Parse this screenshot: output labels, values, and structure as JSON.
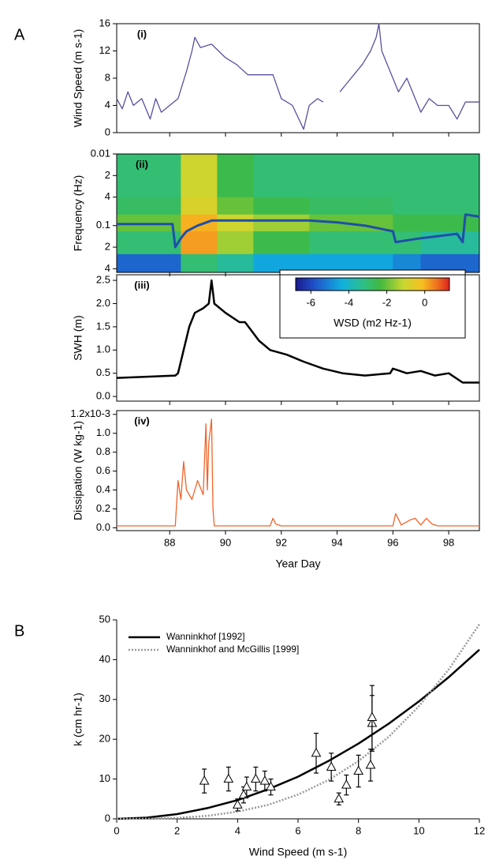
{
  "chart_data": [
    {
      "type": "line",
      "panel": "A",
      "annotation": "(i)",
      "ylabel": "Wind Speed (m s-1)",
      "xlim": [
        86.1,
        99.1
      ],
      "xticks": [
        88,
        90,
        92,
        94,
        96,
        98
      ],
      "ylim": [
        0,
        16
      ],
      "yticks": [
        0,
        4,
        8,
        12,
        16
      ],
      "series": [
        {
          "color": "#5a4fa0",
          "x": [
            86.1,
            86.3,
            86.5,
            86.7,
            87.0,
            87.3,
            87.5,
            87.7,
            88.0,
            88.3,
            88.6,
            88.8,
            88.9,
            89.1,
            89.5,
            90.0,
            90.4,
            90.8,
            91.2,
            91.7,
            92.0,
            92.4,
            92.8,
            93.0,
            93.3,
            93.5,
            93.8,
            94.1,
            94.3,
            94.6,
            94.9,
            95.2,
            95.4,
            95.5,
            95.6,
            95.8,
            96.0,
            96.2,
            96.5,
            96.7,
            97.0,
            97.3,
            97.6,
            98.0,
            98.3,
            98.6,
            99.1
          ],
          "values": [
            5,
            3.5,
            6,
            4,
            5,
            2,
            5,
            3,
            4,
            5,
            9,
            12,
            14,
            12.5,
            13,
            11,
            10,
            8.5,
            8.5,
            8.5,
            5,
            4,
            0.5,
            4,
            5,
            4.5,
            null,
            6,
            7,
            8.5,
            10,
            12,
            14,
            16,
            12,
            10,
            8,
            6,
            8,
            6,
            3,
            5,
            4,
            4,
            2,
            4.5,
            4.5
          ]
        }
      ]
    },
    {
      "type": "heatmap",
      "annotation": "(ii)",
      "ylabel": "Frequency (Hz)",
      "ylog": true,
      "y_inverted": true,
      "xlim": [
        86.1,
        99.1
      ],
      "xticks": [
        88,
        90,
        92,
        94,
        96,
        98
      ],
      "ylim": [
        0.01,
        0.45
      ],
      "yticks": [
        0.01,
        {
          "value": 0.02,
          "label": "2"
        },
        {
          "value": 0.04,
          "label": "4"
        },
        0.1,
        {
          "value": 0.2,
          "label": "2"
        },
        {
          "value": 0.4,
          "label": "4"
        }
      ],
      "x_edges": [
        86.1,
        88.4,
        89.7,
        91,
        93,
        95,
        96,
        97,
        99.1
      ],
      "y_edges": [
        0.01,
        0.02,
        0.04,
        0.07,
        0.12,
        0.25,
        0.45
      ],
      "z": [
        [
          -3,
          -1,
          -2.5,
          -3,
          -3,
          -3,
          -3,
          -3
        ],
        [
          -3,
          -1,
          -2.5,
          -3,
          -3,
          -3,
          -3,
          -3
        ],
        [
          -2.8,
          -0.8,
          -2,
          -2.5,
          -2.8,
          -2.8,
          -3,
          -3
        ],
        [
          -2,
          0,
          -1,
          -1.5,
          -2,
          -2,
          -2.5,
          -2.5
        ],
        [
          -3,
          0.2,
          -1.5,
          -2.5,
          -3,
          -3,
          -3,
          -3.5
        ],
        [
          -5.5,
          -3,
          -3.5,
          -4.5,
          -4.5,
          -4.5,
          -5,
          -5.5
        ]
      ],
      "clim": [
        -6.8,
        1.3
      ],
      "cticks": [
        -6,
        -4,
        -2,
        0
      ],
      "clabel": "WSD (m2 Hz-1)",
      "series": [
        {
          "color": "#1f4fa8",
          "x": [
            86.1,
            88.1,
            88.2,
            88.4,
            88.6,
            89.0,
            89.5,
            91.0,
            93.0,
            94.0,
            95.0,
            96.0,
            96.1,
            97.0,
            98.3,
            98.5,
            98.6,
            99.1
          ],
          "values": [
            0.095,
            0.095,
            0.2,
            0.15,
            0.12,
            0.1,
            0.085,
            0.085,
            0.085,
            0.09,
            0.1,
            0.12,
            0.17,
            0.15,
            0.13,
            0.17,
            0.07,
            0.075
          ]
        }
      ]
    },
    {
      "type": "line",
      "annotation": "(iii)",
      "ylabel": "SWH (m)",
      "xlim": [
        86.1,
        99.1
      ],
      "xticks": [
        88,
        90,
        92,
        94,
        96,
        98
      ],
      "ylim": [
        -0.1,
        2.62
      ],
      "yticks": [
        {
          "value": 0,
          "label": "0.0"
        },
        0.5,
        {
          "value": 1,
          "label": "1.0"
        },
        1.5,
        {
          "value": 2,
          "label": "2.0"
        },
        2.5
      ],
      "series": [
        {
          "color": "#000000",
          "x": [
            86.1,
            87,
            88.2,
            88.3,
            88.5,
            88.7,
            88.9,
            89.2,
            89.4,
            89.5,
            89.6,
            90.0,
            90.5,
            90.7,
            91.2,
            91.6,
            92.2,
            92.8,
            93.5,
            94.2,
            95.0,
            95.9,
            96.0,
            96.5,
            97.0,
            97.5,
            98.0,
            98.5,
            99.1
          ],
          "values": [
            0.4,
            0.42,
            0.45,
            0.5,
            1.0,
            1.5,
            1.8,
            1.9,
            2.0,
            2.5,
            2.0,
            1.8,
            1.6,
            1.6,
            1.2,
            1.0,
            0.9,
            0.75,
            0.6,
            0.5,
            0.45,
            0.5,
            0.6,
            0.5,
            0.55,
            0.45,
            0.5,
            0.3,
            0.3
          ]
        }
      ]
    },
    {
      "type": "line",
      "annotation": "(iv)",
      "ylabel": "Dissipation (W kg-1)",
      "xlabel": "Year Day",
      "xlim": [
        86.1,
        99.1
      ],
      "xticks": [
        88,
        90,
        92,
        94,
        96,
        98
      ],
      "ylim": [
        -0.03,
        1.24
      ],
      "yticks": [
        {
          "value": 0,
          "label": "0.0"
        },
        0.2,
        0.4,
        0.6,
        0.8,
        {
          "value": 1,
          "label": "1.0"
        },
        {
          "value": 1.2,
          "label": "1.2x10-3"
        }
      ],
      "series": [
        {
          "color": "#f0642a",
          "x": [
            86.1,
            88.2,
            88.3,
            88.4,
            88.5,
            88.6,
            88.8,
            89.0,
            89.2,
            89.3,
            89.35,
            89.4,
            89.5,
            89.55,
            89.6,
            91.6,
            91.7,
            91.8,
            92.0,
            96.0,
            96.1,
            96.3,
            96.6,
            96.8,
            97.0,
            97.2,
            97.4,
            97.6,
            99.1
          ],
          "values": [
            0.02,
            0.02,
            0.5,
            0.3,
            0.7,
            0.4,
            0.3,
            0.5,
            0.35,
            1.1,
            0.4,
            0.9,
            1.15,
            0.2,
            0.02,
            0.02,
            0.1,
            0.04,
            0.02,
            0.02,
            0.15,
            0.03,
            0.08,
            0.1,
            0.03,
            0.1,
            0.04,
            0.02,
            0.02
          ]
        }
      ]
    },
    {
      "type": "scatter",
      "panel": "B",
      "ylabel": "k (cm hr-1)",
      "xlabel": "Wind Speed (m s-1)",
      "xlim": [
        0,
        12
      ],
      "xticks": [
        0,
        2,
        4,
        6,
        8,
        10,
        12
      ],
      "ylim": [
        0,
        50
      ],
      "yticks": [
        0,
        10,
        20,
        30,
        40,
        50
      ],
      "legend": "upper left",
      "points": {
        "color": "#000000",
        "x": [
          2.9,
          3.7,
          4.0,
          4.2,
          4.3,
          4.6,
          4.9,
          5.1,
          6.6,
          7.1,
          7.35,
          7.6,
          8.0,
          8.4,
          8.45,
          8.45
        ],
        "values": [
          9.5,
          10,
          3.5,
          6,
          8,
          10,
          9.5,
          8,
          16.5,
          13,
          5,
          8.5,
          12,
          13.5,
          24,
          25.5
        ],
        "errors": [
          3,
          3,
          1.5,
          2,
          2.5,
          3,
          2.5,
          2,
          5,
          3.5,
          1.5,
          2.5,
          4,
          4,
          7,
          8
        ]
      },
      "series": [
        {
          "name": "Wanninkhof [1992]",
          "color": "#000000",
          "dash": false,
          "x": [
            0,
            1,
            2,
            3,
            4,
            5,
            6,
            7,
            8,
            9,
            10,
            11,
            12
          ],
          "values": [
            0,
            0.3,
            1.2,
            2.7,
            4.7,
            7.4,
            10.6,
            14.5,
            18.9,
            23.9,
            29.5,
            35.7,
            42.5
          ]
        },
        {
          "name": "Wanninkhof and McGillis [1999]",
          "color": "#999999",
          "dash": true,
          "x": [
            0,
            1,
            2,
            3,
            4,
            5,
            6,
            7,
            8,
            9,
            10,
            11,
            12
          ],
          "values": [
            0,
            0.03,
            0.23,
            0.76,
            1.8,
            3.5,
            6.1,
            9.7,
            14.5,
            20.6,
            28.3,
            37.7,
            48.9
          ]
        }
      ]
    }
  ]
}
